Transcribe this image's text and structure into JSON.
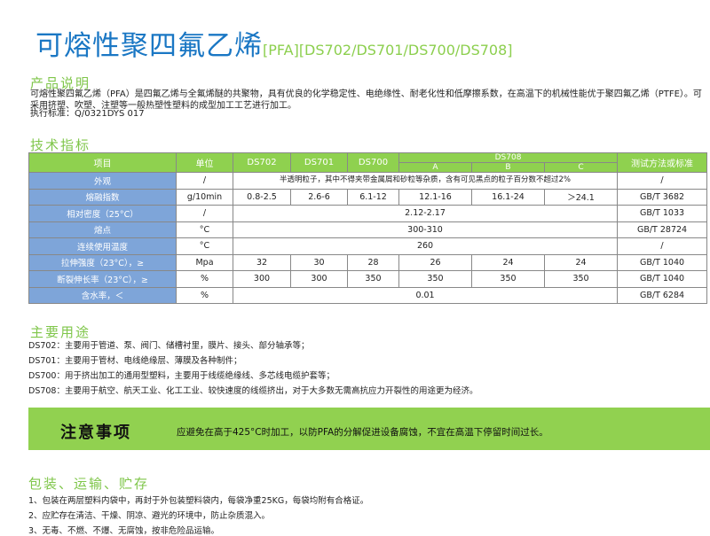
{
  "header": {
    "title": "可熔性聚四氟乙烯",
    "subtitle": "[PFA][DS702/DS701/DS700/DS708]"
  },
  "description": {
    "heading": "产品说明",
    "body": "可熔性聚四氟乙烯（PFA）是四氟乙烯与全氟烯醚的共聚物，具有优良的化学稳定性、电绝缘性、耐老化性和低摩擦系数，在高温下的机械性能优于聚四氟乙烯（PTFE）。可采用挤塑、吹塑、注塑等一般热塑性塑料的成型加工工艺进行加工。",
    "standard": "执行标准：Q/0321DYS 017"
  },
  "specs": {
    "heading": "技术指标",
    "columns": {
      "item": "项目",
      "unit": "单位",
      "ds702": "DS702",
      "ds701": "DS701",
      "ds700": "DS700",
      "ds708": "DS708",
      "a": "A",
      "b": "B",
      "c": "C",
      "method": "测试方法或标准"
    },
    "rows": [
      {
        "item": "外观",
        "unit": "/",
        "merged": "半透明粒子，其中不得夹带金属屑和砂粒等杂质，含有可见黑点的粒子百分数不超过2%",
        "method": "/"
      },
      {
        "item": "熔融指数",
        "unit": "g/10min",
        "values": [
          "0.8-2.5",
          "2.6-6",
          "6.1-12",
          "12.1-16",
          "16.1-24",
          "＞24.1"
        ],
        "method": "GB/T 3682"
      },
      {
        "item": "相对密度（25°C）",
        "unit": "/",
        "merged": "2.12-2.17",
        "method": "GB/T 1033"
      },
      {
        "item": "熔点",
        "unit": "°C",
        "merged": "300-310",
        "method": "GB/T 28724"
      },
      {
        "item": "连续使用温度",
        "unit": "°C",
        "merged": "260",
        "method": "/"
      },
      {
        "item": "拉伸强度（23°C），≥",
        "unit": "Mpa",
        "values": [
          "32",
          "30",
          "28",
          "26",
          "24",
          "24"
        ],
        "method": "GB/T 1040"
      },
      {
        "item": "断裂伸长率（23°C），≥",
        "unit": "%",
        "values": [
          "300",
          "300",
          "350",
          "350",
          "350",
          "350"
        ],
        "method": "GB/T 1040"
      },
      {
        "item": "含水率，＜",
        "unit": "%",
        "merged": "0.01",
        "method": "GB/T 6284"
      }
    ]
  },
  "uses": {
    "heading": "主要用途",
    "items": [
      "DS702：主要用于管道、泵、阀门、储槽衬里，膜片、接头、部分轴承等；",
      "DS701：主要用于管材、电线绝缘层、薄膜及各种制件；",
      "DS700：用于挤出加工的通用型塑料，主要用于线缆绝缘线、多芯线电缆护套等；",
      "DS708：主要用于航空、航天工业、化工工业、较快速度的线缆挤出，对于大多数无需高抗应力开裂性的用途更为经济。"
    ]
  },
  "notice": {
    "title": "注意事项",
    "text": "应避免在高于425°C时加工，以防PFA的分解促进设备腐蚀，不宜在高温下停留时间过长。"
  },
  "storage": {
    "heading": "包装、运输、贮存",
    "items": [
      "1、包装在两层塑料内袋中，再封于外包装塑料袋内，每袋净重25KG，每袋均附有合格证。",
      "2、应贮存在清洁、干燥、阴凉、避光的环境中，防止杂质混入。",
      "3、无毒、不燃、不爆、无腐蚀，按非危险品运输。"
    ]
  },
  "colors": {
    "title": "#1a77c4",
    "accent_green": "#8fd14f",
    "label_blue": "#7ea5d9"
  }
}
